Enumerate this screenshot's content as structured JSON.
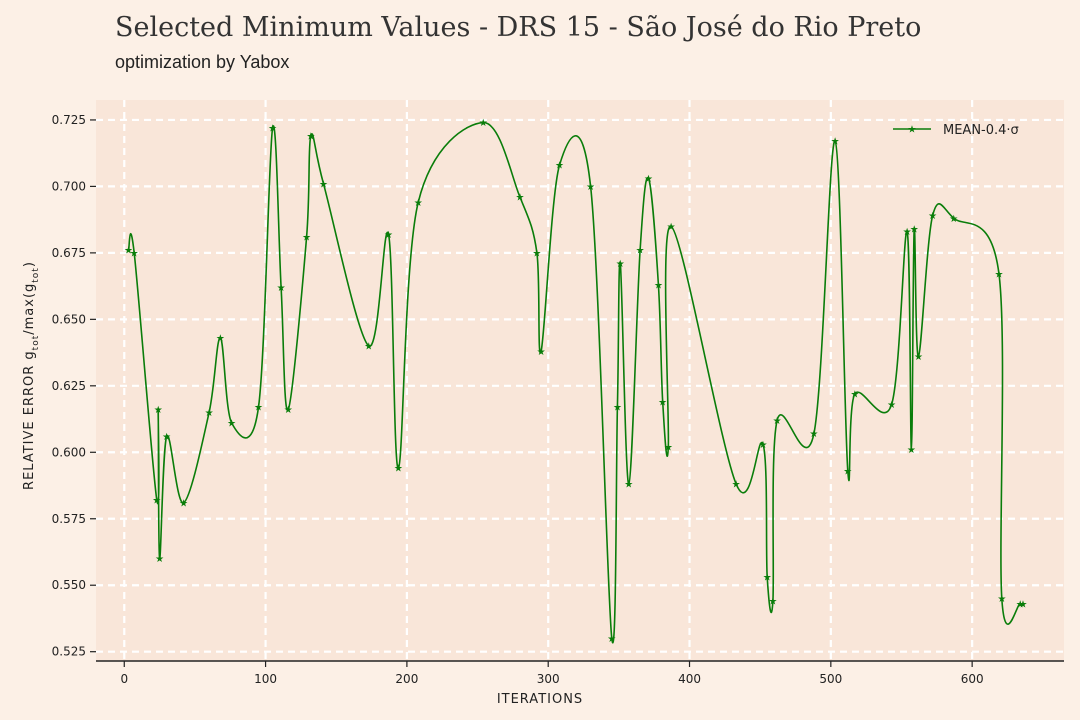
{
  "title": "Selected Minimum Values - DRS 15 - São José do Rio Preto",
  "subtitle": "optimization by Yabox",
  "chart_data": {
    "type": "line",
    "xlabel": "ITERATIONS",
    "ylabel": "RELATIVE ERROR g_tot/max(g_tot)",
    "ylabel_parts": {
      "pre": "RELATIVE ERROR g",
      "sub1": "tot",
      "mid": "/max(g",
      "sub2": "tot",
      "post": ")"
    },
    "xlim": [
      -20,
      665
    ],
    "ylim": [
      0.5215,
      0.7325
    ],
    "xticks": [
      0,
      100,
      200,
      300,
      400,
      500,
      600
    ],
    "xtick_labels": [
      "0",
      "100",
      "200",
      "300",
      "400",
      "500",
      "600"
    ],
    "yticks": [
      0.525,
      0.55,
      0.575,
      0.6,
      0.625,
      0.65,
      0.675,
      0.7,
      0.725
    ],
    "ytick_labels": [
      "0.525",
      "0.550",
      "0.575",
      "0.600",
      "0.625",
      "0.650",
      "0.675",
      "0.700",
      "0.725"
    ],
    "grid": true,
    "legend_position": "top-right",
    "colors": {
      "line": "#0a7d0a",
      "plot_bg": "#f9e6d9",
      "grid": "#ffffff"
    },
    "series": [
      {
        "name": "MEAN-0.4·σ",
        "x": [
          3,
          7,
          23,
          24,
          25,
          30,
          42,
          60,
          68,
          76,
          95,
          105,
          111,
          116,
          129,
          132,
          141,
          173,
          187,
          194,
          208,
          254,
          280,
          292,
          295,
          308,
          330,
          345,
          349,
          351,
          357,
          365,
          371,
          378,
          381,
          385,
          387,
          433,
          452,
          455,
          459,
          462,
          488,
          503,
          512,
          517,
          543,
          554,
          557,
          559,
          562,
          572,
          587,
          619,
          621,
          634,
          636
        ],
        "y": [
          0.676,
          0.675,
          0.582,
          0.616,
          0.56,
          0.606,
          0.581,
          0.615,
          0.643,
          0.611,
          0.617,
          0.722,
          0.662,
          0.616,
          0.681,
          0.719,
          0.701,
          0.64,
          0.682,
          0.594,
          0.694,
          0.724,
          0.696,
          0.675,
          0.638,
          0.708,
          0.7,
          0.53,
          0.617,
          0.671,
          0.588,
          0.676,
          0.703,
          0.663,
          0.619,
          0.602,
          0.685,
          0.588,
          0.603,
          0.553,
          0.544,
          0.612,
          0.607,
          0.717,
          0.593,
          0.622,
          0.618,
          0.683,
          0.601,
          0.684,
          0.636,
          0.689,
          0.688,
          0.667,
          0.545,
          0.543,
          0.543
        ]
      }
    ]
  }
}
